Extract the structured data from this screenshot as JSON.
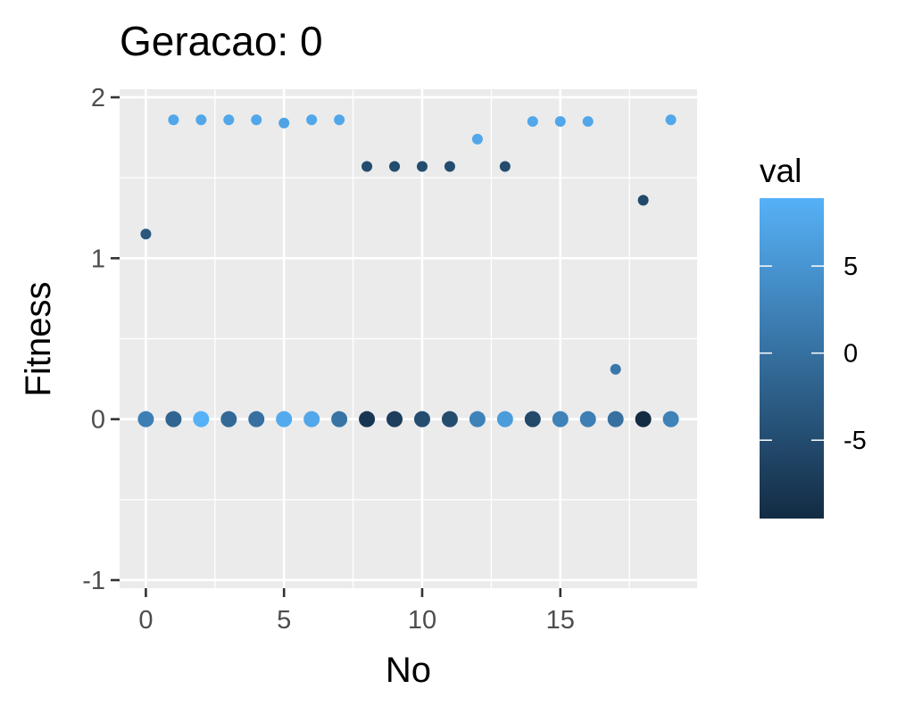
{
  "chart_data": {
    "type": "scatter",
    "title": "Geracao: 0",
    "xlabel": "No",
    "ylabel": "Fitness",
    "xlim": [
      -0.95,
      19.95
    ],
    "ylim": [
      -1.05,
      2.05
    ],
    "x_ticks": [
      0,
      5,
      10,
      15
    ],
    "y_ticks": [
      -1,
      0,
      1,
      2
    ],
    "grid": true,
    "legend": {
      "title": "val",
      "position": "right",
      "range": [
        -9.5,
        8.9
      ],
      "ticks": [
        5,
        0,
        -5
      ],
      "ticks_labels": [
        "5",
        "0",
        "-5"
      ],
      "color_low": "#132b43",
      "color_high": "#56b1f7"
    },
    "series": [
      {
        "points": [
          {
            "x": 0,
            "y": 1.15,
            "val": -3.5
          },
          {
            "x": 1,
            "y": 1.86,
            "val": 7.5
          },
          {
            "x": 2,
            "y": 1.86,
            "val": 7.5
          },
          {
            "x": 3,
            "y": 1.86,
            "val": 7.5
          },
          {
            "x": 4,
            "y": 1.86,
            "val": 7.5
          },
          {
            "x": 5,
            "y": 1.84,
            "val": 7.0
          },
          {
            "x": 6,
            "y": 1.86,
            "val": 7.5
          },
          {
            "x": 7,
            "y": 1.86,
            "val": 7.5
          },
          {
            "x": 8,
            "y": 1.57,
            "val": -5.0
          },
          {
            "x": 9,
            "y": 1.57,
            "val": -5.0
          },
          {
            "x": 10,
            "y": 1.57,
            "val": -5.0
          },
          {
            "x": 11,
            "y": 1.57,
            "val": -5.0
          },
          {
            "x": 12,
            "y": 1.74,
            "val": 7.5
          },
          {
            "x": 13,
            "y": 1.57,
            "val": -5.0
          },
          {
            "x": 14,
            "y": 1.85,
            "val": 7.5
          },
          {
            "x": 15,
            "y": 1.85,
            "val": 7.5
          },
          {
            "x": 16,
            "y": 1.85,
            "val": 7.5
          },
          {
            "x": 17,
            "y": 0.31,
            "val": 1.0
          },
          {
            "x": 18,
            "y": 1.36,
            "val": -5.5
          },
          {
            "x": 19,
            "y": 1.86,
            "val": 7.5
          }
        ]
      },
      {
        "points": [
          {
            "x": 0,
            "y": 0,
            "val": 2.0
          },
          {
            "x": 1,
            "y": 0,
            "val": -1.5
          },
          {
            "x": 2,
            "y": 0,
            "val": 8.9
          },
          {
            "x": 3,
            "y": 0,
            "val": -1.0
          },
          {
            "x": 4,
            "y": 0,
            "val": 0.0
          },
          {
            "x": 5,
            "y": 0,
            "val": 8.0
          },
          {
            "x": 6,
            "y": 0,
            "val": 7.5
          },
          {
            "x": 7,
            "y": 0,
            "val": 0.5
          },
          {
            "x": 8,
            "y": 0,
            "val": -8.0
          },
          {
            "x": 9,
            "y": 0,
            "val": -7.0
          },
          {
            "x": 10,
            "y": 0,
            "val": -5.0
          },
          {
            "x": 11,
            "y": 0,
            "val": -5.0
          },
          {
            "x": 12,
            "y": 0,
            "val": 2.5
          },
          {
            "x": 13,
            "y": 0,
            "val": 6.0
          },
          {
            "x": 14,
            "y": 0,
            "val": -5.5
          },
          {
            "x": 15,
            "y": 0,
            "val": 2.5
          },
          {
            "x": 16,
            "y": 0,
            "val": 2.0
          },
          {
            "x": 17,
            "y": 0,
            "val": 0.0
          },
          {
            "x": 18,
            "y": 0,
            "val": -9.5
          },
          {
            "x": 19,
            "y": 0,
            "val": 2.5
          }
        ]
      }
    ]
  }
}
